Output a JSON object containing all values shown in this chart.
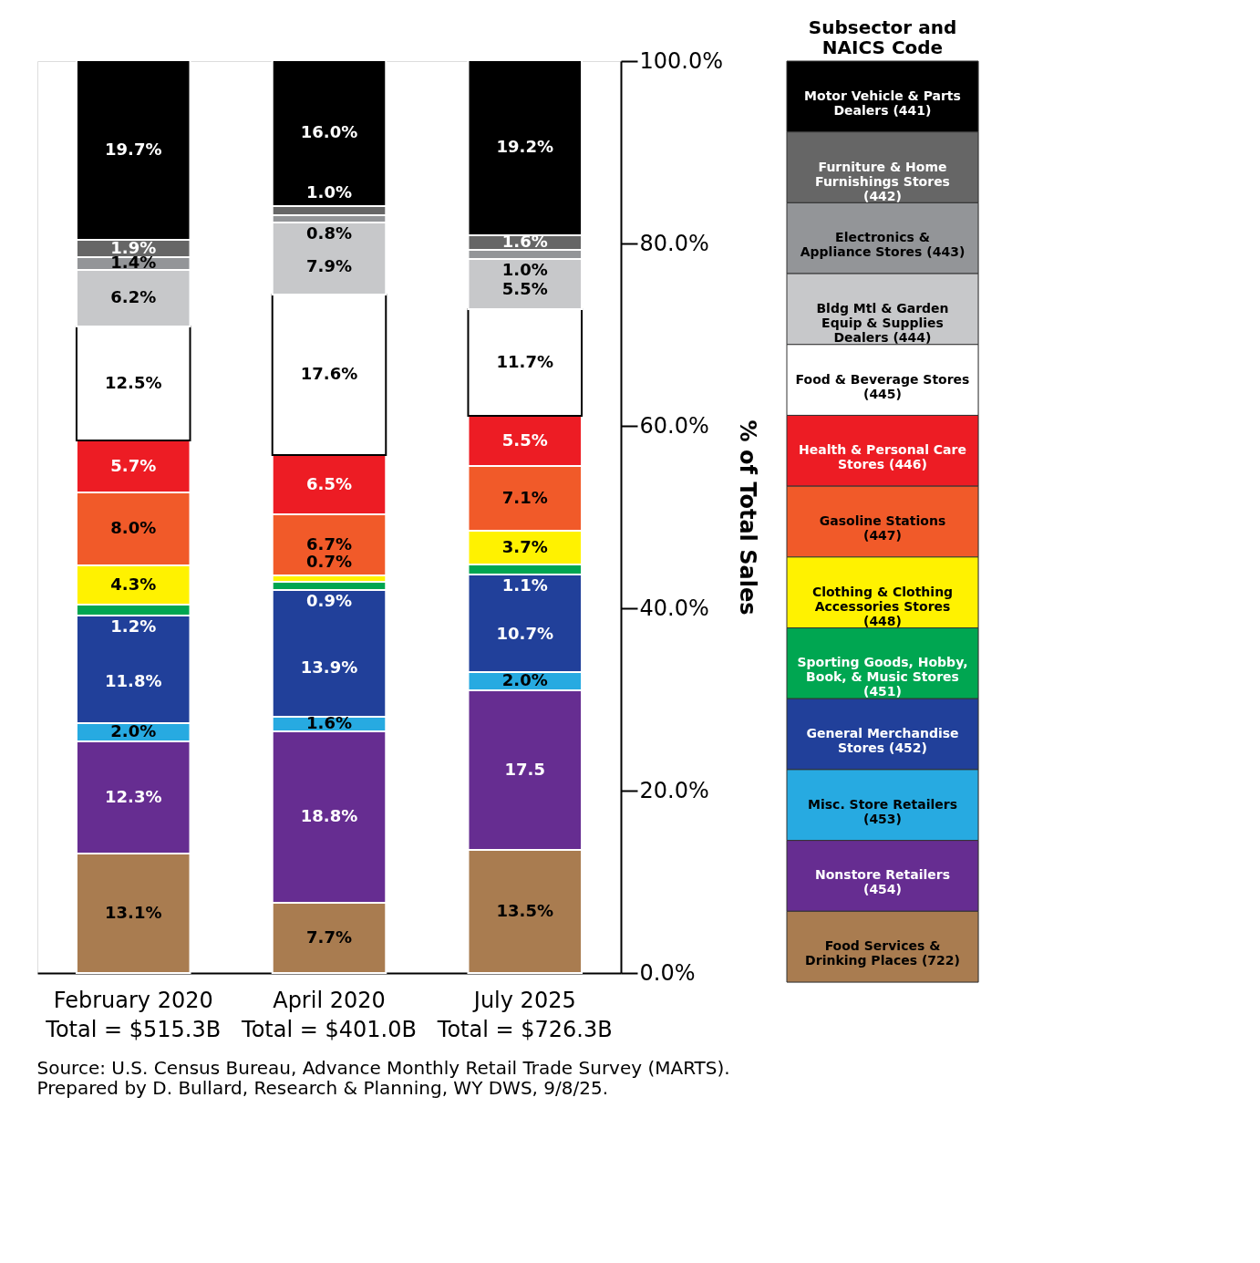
{
  "chart_data": {
    "type": "bar",
    "stacked": true,
    "legend": "right",
    "legend_title": "Subsector and NAICS Code",
    "ylabel": "% of Total Sales",
    "categories": [
      "February 2020\nTotal = $515.3B",
      "April 2020\nTotal = $401.0B",
      "July 2025\nTotal = $726.3B"
    ],
    "ylim": [
      0,
      100
    ],
    "yticks": [
      {
        "value": 0,
        "label": "0.0%"
      },
      {
        "value": 20,
        "label": "20.0%"
      },
      {
        "value": 40,
        "label": "40.0%"
      },
      {
        "value": 60,
        "label": "60.0%"
      },
      {
        "value": 80,
        "label": "80.0%"
      },
      {
        "value": 100,
        "label": "100.0%"
      }
    ],
    "grid": false,
    "series": [
      {
        "name": "Food Services & Drinking Places (722)",
        "color": "#a97c50",
        "values": [
          13.1,
          7.7,
          13.5
        ],
        "value_labels": [
          "13.1%",
          "7.7%",
          "13.5%"
        ]
      },
      {
        "name": "Nonstore Retailers (454)",
        "color": "#662d91",
        "values": [
          12.3,
          18.8,
          17.5
        ],
        "value_labels": [
          "12.3%",
          "18.8%",
          "17.5"
        ]
      },
      {
        "name": "Misc. Store Retailers (453)",
        "color": "#27aae1",
        "values": [
          2.0,
          1.6,
          2.0
        ],
        "value_labels": [
          "2.0%",
          "1.6%",
          "2.0%"
        ]
      },
      {
        "name": "General Merchandise Stores (452)",
        "color": "#21409a",
        "values": [
          11.8,
          13.9,
          10.7
        ],
        "value_labels": [
          "11.8%",
          "13.9%",
          "10.7%"
        ]
      },
      {
        "name": "Sporting Goods, Hobby, Book, & Music Stores (451)",
        "color": "#00a651",
        "values": [
          1.2,
          0.9,
          1.1
        ],
        "value_labels": [
          "1.2%",
          "0.9%",
          "1.1%"
        ]
      },
      {
        "name": "Clothing & Clothing Accessories Stores (448)",
        "color": "#fff200",
        "values": [
          4.3,
          0.7,
          3.7
        ],
        "value_labels": [
          "4.3%",
          "0.7%",
          "3.7%"
        ]
      },
      {
        "name": "Gasoline Stations (447)",
        "color": "#f15a29",
        "values": [
          8.0,
          6.7,
          7.1
        ],
        "value_labels": [
          "8.0%",
          "6.7%",
          "7.1%"
        ]
      },
      {
        "name": "Health & Personal Care Stores (446)",
        "color": "#ed1c24",
        "values": [
          5.7,
          6.5,
          5.5
        ],
        "value_labels": [
          "5.7%",
          "6.5%",
          "5.5%"
        ]
      },
      {
        "name": "Food & Beverage Stores (445)",
        "color": "#ffffff",
        "values": [
          12.5,
          17.6,
          11.7
        ],
        "value_labels": [
          "12.5%",
          "17.6%",
          "11.7%"
        ]
      },
      {
        "name": "Bldg Mtl & Garden Equip & Supplies Dealers (444)",
        "color": "#c7c8ca",
        "values": [
          6.2,
          7.9,
          5.5
        ],
        "value_labels": [
          "6.2%",
          "7.9%",
          "5.5%"
        ]
      },
      {
        "name": "Electronics & Appliance Stores (443)",
        "color": "#939598",
        "values": [
          1.4,
          0.8,
          1.0
        ],
        "value_labels": [
          "1.4%",
          "0.8%",
          "1.0%"
        ]
      },
      {
        "name": "Furniture & Home Furnishings Stores (442)",
        "color": "#666666",
        "values": [
          1.9,
          1.0,
          1.6
        ],
        "value_labels": [
          "1.9%",
          "1.0%",
          "1.6%"
        ]
      },
      {
        "name": "Motor Vehicle & Parts Dealers (441)",
        "color": "#000000",
        "values": [
          19.7,
          16.0,
          19.2
        ],
        "value_labels": [
          "19.7%",
          "16.0%",
          "19.2%"
        ]
      }
    ],
    "annotations": [
      "Source: U.S. Census Bureau, Advance Monthly Retail Trade Survey (MARTS).",
      "Prepared by D. Bullard, Research & Planning, WY DWS, 9/8/25."
    ]
  }
}
